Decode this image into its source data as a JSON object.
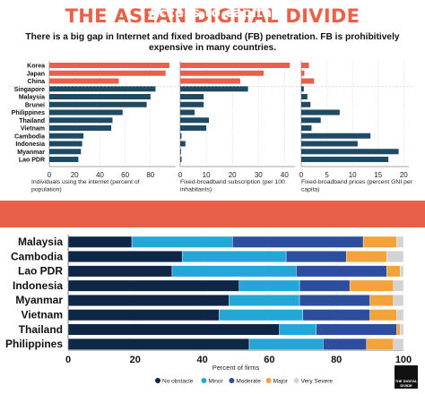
{
  "title": "THE ASEAN DIGITAL DIVIDE",
  "subtitle": "There is a big gap in Internet and fixed broadband (FB) penetration. FB is prohibitively expensive in many countries.",
  "colors": {
    "highlight": "#e8604a",
    "bar": "#1e4b63",
    "no_obstacle": "#0f2747",
    "minor": "#22a7d6",
    "moderate": "#2d4e9c",
    "major": "#f2a33a",
    "very_severe": "#d3d3d3"
  },
  "section2_title": "Access to capital",
  "logo_text": "THE DIGITAL DIVIDE",
  "chart_data": [
    {
      "type": "bar",
      "orientation": "horizontal",
      "categories": [
        "Korea",
        "Japan",
        "China",
        "Singapore",
        "Malaysia",
        "Brunei",
        "Philippines",
        "Thailand",
        "Vietnam",
        "Cambodia",
        "Indonesia",
        "Myanmar",
        "Lao PDR"
      ],
      "values": [
        95,
        92,
        55,
        84,
        80,
        77,
        58,
        50,
        49,
        27,
        26,
        25,
        23
      ],
      "highlighted": [
        "Korea",
        "Japan",
        "China"
      ],
      "xlabel": "Individuals using the internet (percent of population)",
      "ticks": [
        0,
        20,
        40,
        60,
        80
      ],
      "xlim": [
        0,
        100
      ]
    },
    {
      "type": "bar",
      "orientation": "horizontal",
      "categories": [
        "Korea",
        "Japan",
        "China",
        "Singapore",
        "Malaysia",
        "Brunei",
        "Philippines",
        "Thailand",
        "Vietnam",
        "Cambodia",
        "Indonesia",
        "Myanmar",
        "Lao PDR"
      ],
      "values": [
        42,
        32,
        23,
        26,
        9,
        9,
        5.5,
        11,
        10,
        0.5,
        2,
        0.3,
        0.5
      ],
      "highlighted": [
        "Korea",
        "Japan",
        "China"
      ],
      "xlabel": "Fixed-broadband subscription (per 100 inhabitants)",
      "ticks": [
        0,
        10,
        20,
        30,
        40
      ],
      "xlim": [
        0,
        44
      ]
    },
    {
      "type": "bar",
      "orientation": "horizontal",
      "categories": [
        "Korea",
        "Japan",
        "China",
        "Singapore",
        "Malaysia",
        "Brunei",
        "Philippines",
        "Thailand",
        "Vietnam",
        "Cambodia",
        "Indonesia",
        "Myanmar",
        "Lao PDR"
      ],
      "values": [
        1.5,
        0.6,
        2.5,
        0.5,
        1.2,
        1.8,
        7.5,
        3.8,
        2.0,
        13.5,
        11.0,
        19.0,
        17.0
      ],
      "highlighted": [
        "Korea",
        "Japan",
        "China"
      ],
      "xlabel": "Fixed-broadband prices (percent GNI per capita)",
      "ticks": [
        0,
        5,
        10,
        15,
        20
      ],
      "xlim": [
        0,
        21
      ]
    },
    {
      "type": "bar",
      "orientation": "horizontal",
      "stacked": true,
      "title": "Access to capital",
      "categories": [
        "Malaysia",
        "Cambodia",
        "Lao PDR",
        "Indonesia",
        "Myanmar",
        "Vietnam",
        "Thailand",
        "Philippines"
      ],
      "series": [
        {
          "name": "No obstacle",
          "values": [
            19,
            34,
            31,
            51,
            48,
            45,
            63,
            54
          ]
        },
        {
          "name": "Minor",
          "values": [
            30,
            31,
            37,
            18,
            21,
            25,
            11,
            22
          ]
        },
        {
          "name": "Moderate",
          "values": [
            39,
            18,
            27,
            15,
            21,
            20,
            24,
            13
          ]
        },
        {
          "name": "Major",
          "values": [
            10,
            12,
            4,
            13,
            7,
            8,
            1,
            8
          ]
        },
        {
          "name": "Very Severe",
          "values": [
            2,
            5,
            1,
            3,
            3,
            2,
            1,
            3
          ]
        }
      ],
      "xlabel": "Percent of firms",
      "ticks": [
        0,
        20,
        40,
        60,
        80,
        100
      ],
      "xlim": [
        0,
        100
      ],
      "legend_position": "bottom"
    }
  ]
}
